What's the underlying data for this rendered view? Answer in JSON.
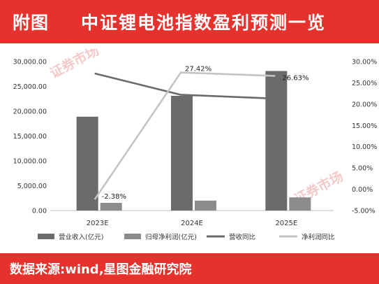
{
  "header": {
    "tag": "附图",
    "title": "中证锂电池指数盈利预测一览"
  },
  "footer": {
    "source": "数据来源:wind,星图金融研究院"
  },
  "watermark": {
    "text": "证券市场"
  },
  "colors": {
    "brand_red": "#e5322d",
    "revenue_bar": "#6b6b6b",
    "profit_bar": "#8c8c8c",
    "revenue_yoy_line": "#6b6b6b",
    "profit_yoy_line": "#c4c4c4"
  },
  "chart_data": {
    "type": "bar",
    "categories": [
      "2023E",
      "2024E",
      "2025E"
    ],
    "y_left": {
      "min": 0,
      "max": 30000,
      "step": 5000,
      "tick_labels": [
        "0.00",
        "5,000.00",
        "10,000.00",
        "15,000.00",
        "20,000.00",
        "25,000.00",
        "30,000.00"
      ]
    },
    "y_right": {
      "min": -5,
      "max": 30,
      "step": 5,
      "tick_labels": [
        "-5.00%",
        "0.00%",
        "5.00%",
        "10.00%",
        "15.00%",
        "20.00%",
        "25.00%",
        "30.00%"
      ]
    },
    "series": [
      {
        "name": "营业收入(亿元)",
        "kind": "bar",
        "axis": "left",
        "values": [
          18900,
          23100,
          28100
        ]
      },
      {
        "name": "归母净利润(亿元)",
        "kind": "bar",
        "axis": "left",
        "values": [
          1550,
          2000,
          2650
        ]
      },
      {
        "name": "营收同比",
        "kind": "line",
        "axis": "right",
        "values": [
          27.2,
          22.2,
          21.3
        ]
      },
      {
        "name": "净利润同比",
        "kind": "line",
        "axis": "right",
        "values": [
          -2.38,
          27.42,
          26.63
        ]
      }
    ],
    "data_labels": [
      "-2.38%",
      "27.42%",
      "26.63%"
    ],
    "grid": false,
    "legend_position": "bottom"
  }
}
